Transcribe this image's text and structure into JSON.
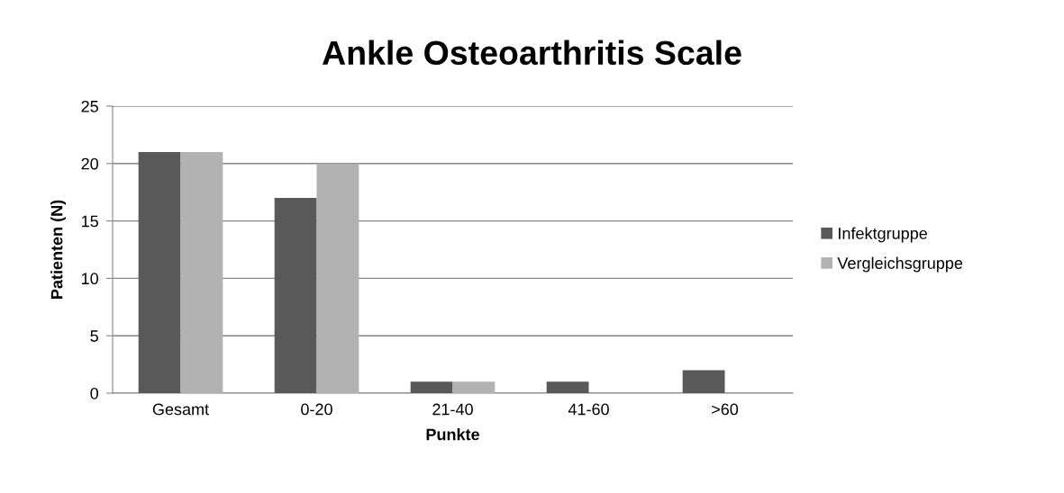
{
  "chart_data": {
    "type": "bar",
    "title": "Ankle Osteoarthritis Scale",
    "xlabel": "Punkte",
    "ylabel": "Patienten (N)",
    "categories": [
      "Gesamt",
      "0-20",
      "21-40",
      "41-60",
      ">60"
    ],
    "series": [
      {
        "name": "Infektgruppe",
        "color": "#595959",
        "values": [
          21,
          17,
          1,
          1,
          2
        ]
      },
      {
        "name": "Vergleichsgruppe",
        "color": "#b2b2b2",
        "values": [
          21,
          20,
          1,
          0,
          0
        ]
      }
    ],
    "ylim": [
      0,
      25
    ],
    "yticks": [
      0,
      5,
      10,
      15,
      20,
      25
    ],
    "grid": "y",
    "legend": "right"
  }
}
